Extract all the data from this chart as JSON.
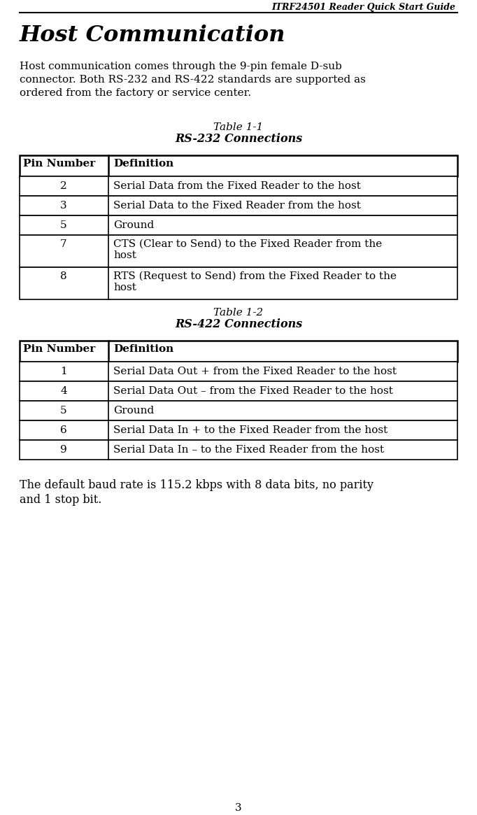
{
  "page_header": "ITRF24501 Reader Quick Start Guide",
  "section_title": "Host Communication",
  "intro_lines": [
    "Host communication comes through the 9-pin female D-sub",
    "connector. Both RS-232 and RS-422 standards are supported as",
    "ordered from the factory or service center."
  ],
  "table1_caption_line1": "Table 1-1",
  "table1_caption_line2": "RS-232 Connections",
  "table1_header": [
    "Pin Number",
    "Definition"
  ],
  "table1_rows": [
    [
      "2",
      "Serial Data from the Fixed Reader to the host"
    ],
    [
      "3",
      "Serial Data to the Fixed Reader from the host"
    ],
    [
      "5",
      "Ground"
    ],
    [
      "7",
      "CTS (Clear to Send) to the Fixed Reader from the\nhost"
    ],
    [
      "8",
      "RTS (Request to Send) from the Fixed Reader to the\nhost"
    ]
  ],
  "table2_caption_line1": "Table 1-2",
  "table2_caption_line2": "RS-422 Connections",
  "table2_header": [
    "Pin Number",
    "Definition"
  ],
  "table2_rows": [
    [
      "1",
      "Serial Data Out + from the Fixed Reader to the host"
    ],
    [
      "4",
      "Serial Data Out – from the Fixed Reader to the host"
    ],
    [
      "5",
      "Ground"
    ],
    [
      "6",
      "Serial Data In + to the Fixed Reader from the host"
    ],
    [
      "9",
      "Serial Data In – to the Fixed Reader from the host"
    ]
  ],
  "footer_lines": [
    "The default baud rate is 115.2 kbps with 8 data bits, no parity",
    "and 1 stop bit."
  ],
  "page_number": "3",
  "bg_color": "#ffffff"
}
